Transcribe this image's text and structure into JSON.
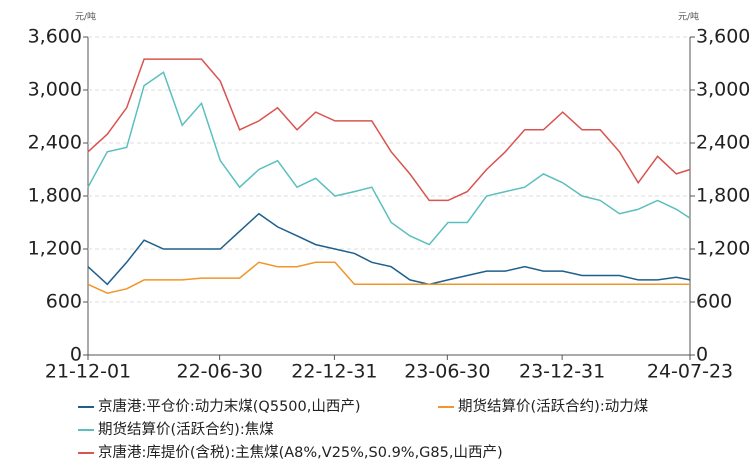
{
  "chart_data": {
    "type": "line",
    "y_unit": "元/吨",
    "y2_unit": "元/吨",
    "x": [
      "21-12-01",
      "22-01-01",
      "22-02-01",
      "22-03-01",
      "22-04-01",
      "22-05-01",
      "22-06-01",
      "22-07-01",
      "22-08-01",
      "22-09-01",
      "22-10-01",
      "22-11-01",
      "22-12-01",
      "23-01-01",
      "23-02-01",
      "23-03-01",
      "23-04-01",
      "23-05-01",
      "23-06-01",
      "23-07-01",
      "23-08-01",
      "23-09-01",
      "23-10-01",
      "23-11-01",
      "23-12-01",
      "24-01-01",
      "24-02-01",
      "24-03-01",
      "24-04-01",
      "24-05-01",
      "24-06-01",
      "24-07-01",
      "24-07-23"
    ],
    "xlim": [
      "21-12-01",
      "24-07-23"
    ],
    "xticks": [
      "21-12-01",
      "22-06-30",
      "22-12-31",
      "23-06-30",
      "23-12-31",
      "24-07-23"
    ],
    "ylim": [
      0,
      3600
    ],
    "yticks": [
      0,
      600,
      {
        "value": 1200,
        "label": "1,200"
      },
      {
        "value": 1800,
        "label": "1,800"
      },
      {
        "value": 2400,
        "label": "2,400"
      },
      {
        "value": 3000,
        "label": "3,000"
      },
      {
        "value": 3600,
        "label": "3,600"
      }
    ],
    "y2lim": [
      0,
      3600
    ],
    "y2ticks": [
      0,
      600,
      {
        "value": 1200,
        "label": "1,200"
      },
      {
        "value": 1800,
        "label": "1,800"
      },
      {
        "value": 2400,
        "label": "2,400"
      },
      {
        "value": 3000,
        "label": "3,000"
      },
      {
        "value": 3600,
        "label": "3,600"
      }
    ],
    "grid": true,
    "series": [
      {
        "name": "京唐港:平仓价:动力末煤(Q5500,山西产)",
        "color": "#1f5f8b",
        "values": [
          1000,
          800,
          1050,
          1300,
          1200,
          1200,
          1200,
          1200,
          1400,
          1600,
          1450,
          1350,
          1250,
          1200,
          1150,
          1050,
          1000,
          850,
          800,
          850,
          900,
          950,
          950,
          1000,
          950,
          950,
          900,
          900,
          900,
          850,
          850,
          880,
          850
        ]
      },
      {
        "name": "期货结算价(活跃合约):动力煤",
        "color": "#f0962a",
        "values": [
          800,
          700,
          750,
          850,
          850,
          850,
          870,
          870,
          870,
          1050,
          1000,
          1000,
          1050,
          1050,
          800,
          800,
          800,
          800,
          800,
          800,
          800,
          800,
          800,
          800,
          800,
          800,
          800,
          800,
          800,
          800,
          800,
          800,
          800
        ]
      },
      {
        "name": "期货结算价(活跃合约):焦煤",
        "color": "#5bbfbf",
        "values": [
          1900,
          2300,
          2350,
          3050,
          3200,
          2600,
          2850,
          2200,
          1900,
          2100,
          2200,
          1900,
          2000,
          1800,
          1850,
          1900,
          1500,
          1350,
          1250,
          1500,
          1500,
          1800,
          1850,
          1900,
          2050,
          1950,
          1800,
          1750,
          1600,
          1650,
          1750,
          1650,
          1550
        ]
      },
      {
        "name": "京唐港:库提价(含税):主焦煤(A8%,V25%,S0.9%,G85,山西产)",
        "color": "#d9534f",
        "values": [
          2300,
          2500,
          2800,
          3350,
          3350,
          3350,
          3350,
          3100,
          2550,
          2650,
          2800,
          2550,
          2750,
          2650,
          2650,
          2650,
          2300,
          2050,
          1750,
          1750,
          1850,
          2100,
          2300,
          2550,
          2550,
          2750,
          2550,
          2550,
          2300,
          1950,
          2250,
          2050,
          2100
        ]
      }
    ]
  }
}
